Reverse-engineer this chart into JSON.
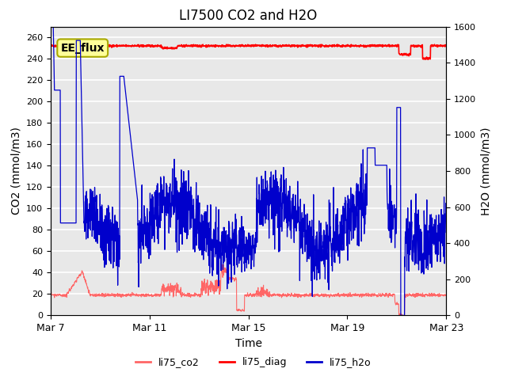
{
  "title": "LI7500 CO2 and H2O",
  "xlabel": "Time",
  "ylabel_left": "CO2 (mmol/m3)",
  "ylabel_right": "H2O (mmol/m3)",
  "ylim_left": [
    0,
    270
  ],
  "ylim_right": [
    0,
    1600
  ],
  "yticks_left": [
    0,
    20,
    40,
    60,
    80,
    100,
    120,
    140,
    160,
    180,
    200,
    220,
    240,
    260
  ],
  "yticks_right": [
    0,
    200,
    400,
    600,
    800,
    1000,
    1200,
    1400,
    1600
  ],
  "xtick_labels": [
    "Mar 7",
    "Mar 11",
    "Mar 15",
    "Mar 19",
    "Mar 23"
  ],
  "xtick_positions": [
    0,
    4,
    8,
    12,
    16
  ],
  "diag_color": "#ff0000",
  "co2_color": "#ff6666",
  "h2o_color": "#0000cc",
  "annotation_text": "EE_flux",
  "annotation_bg": "#ffff99",
  "annotation_border": "#aaaa00",
  "legend_entries": [
    "li75_co2",
    "li75_diag",
    "li75_h2o"
  ],
  "legend_colors": [
    "#ff6666",
    "#ff0000",
    "#0000cc"
  ],
  "background_color": "#e8e8e8",
  "grid_color": "#ffffff",
  "title_fontsize": 12
}
